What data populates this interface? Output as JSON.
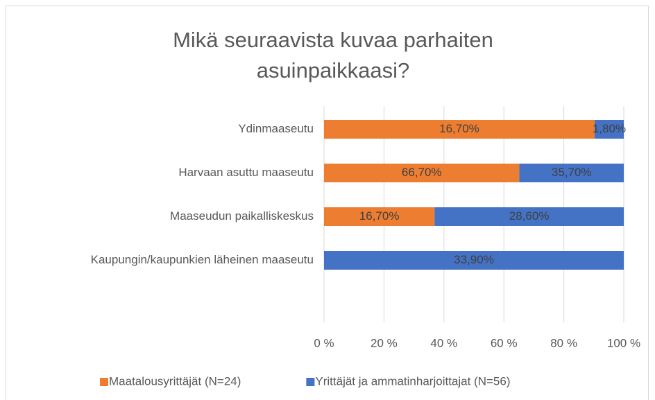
{
  "chart_data": {
    "type": "bar",
    "orientation": "horizontal",
    "stacked_percent": true,
    "title": "Mikä seuraavista kuvaa parhaiten asuinpaikkaasi?",
    "categories": [
      "Ydinmaaseutu",
      "Harvaan asuttu maaseutu",
      "Maaseudun paikalliskeskus",
      "Kaupungin/kaupunkien läheinen maaseutu"
    ],
    "series": [
      {
        "name": "Maatalousyrittäjät (N=24)",
        "color": "#ed7d31",
        "values": [
          16.7,
          66.7,
          16.7,
          null
        ],
        "value_labels": [
          "16,70%",
          "66,70%",
          "16,70%",
          null
        ]
      },
      {
        "name": "Yrittäjät ja ammatinharjoittajat (N=56)",
        "color": "#4472c4",
        "values": [
          1.8,
          35.7,
          28.6,
          33.9
        ],
        "value_labels": [
          "1,80%",
          "35,70%",
          "28,60%",
          "33,90%"
        ]
      }
    ],
    "xlim": [
      0,
      100
    ],
    "xticks": [
      {
        "value": 0,
        "label": "0 %"
      },
      {
        "value": 20,
        "label": "20 %"
      },
      {
        "value": 40,
        "label": "40 %"
      },
      {
        "value": 60,
        "label": "60 %"
      },
      {
        "value": 80,
        "label": "80 %"
      },
      {
        "value": 100,
        "label": "100 %"
      }
    ],
    "grid": true,
    "legend": "bottom"
  }
}
